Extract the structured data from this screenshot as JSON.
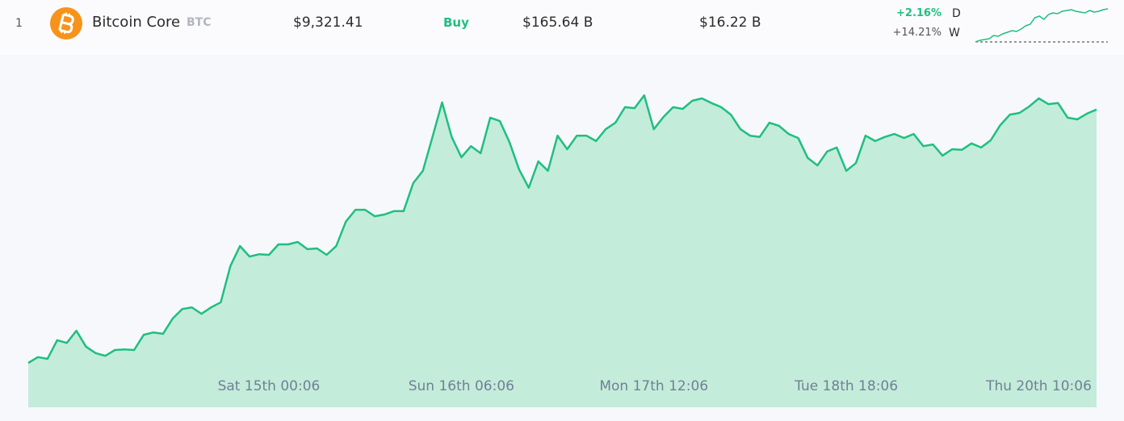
{
  "row": {
    "rank": "1",
    "name": "Bitcoin Core",
    "symbol": "BTC",
    "price": "$9,321.41",
    "action": "Buy",
    "market_cap": "$165.64 B",
    "volume": "$16.22 B",
    "change_day": "+2.16%",
    "day_label": "D",
    "change_week": "+14.21%",
    "week_label": "W"
  },
  "chart_data": [
    {
      "type": "line",
      "color": "#1fbf80",
      "ylim": [
        0,
        42
      ],
      "values": [
        0,
        2,
        3,
        4,
        8,
        7,
        10,
        12,
        14,
        13,
        16,
        20,
        22,
        30,
        32,
        28,
        34,
        36,
        35,
        38,
        39,
        40,
        38,
        37,
        36,
        39,
        37,
        38,
        40,
        41
      ]
    },
    {
      "type": "area",
      "color": "#1fbf80",
      "fill": "#c4ecda",
      "ylim": [
        0,
        100
      ],
      "categories": [
        null,
        null,
        null,
        null,
        null,
        null,
        null,
        null,
        null,
        null,
        null,
        null,
        null,
        null,
        null,
        null,
        null,
        null,
        null,
        null,
        null,
        null,
        null,
        null,
        null,
        "Sat 15th 00:06",
        null,
        null,
        null,
        null,
        null,
        null,
        null,
        null,
        null,
        null,
        null,
        null,
        null,
        null,
        null,
        null,
        null,
        null,
        null,
        "Sun 16th 06:06",
        null,
        null,
        null,
        null,
        null,
        null,
        null,
        null,
        null,
        null,
        null,
        null,
        null,
        null,
        null,
        null,
        null,
        null,
        null,
        "Mon 17th 12:06",
        null,
        null,
        null,
        null,
        null,
        null,
        null,
        null,
        null,
        null,
        null,
        null,
        null,
        null,
        null,
        null,
        null,
        null,
        null,
        "Tue 18th 18:06",
        null,
        null,
        null,
        null,
        null,
        null,
        null,
        null,
        null,
        null,
        null,
        null,
        null,
        null,
        null,
        null,
        null,
        null,
        null,
        "Thu 20th 10:06",
        null,
        null,
        null,
        null,
        null,
        null
      ],
      "values": [
        13.1,
        14.8,
        14.3,
        19.8,
        19.0,
        22.6,
        17.9,
        16.0,
        15.2,
        16.9,
        17.1,
        16.9,
        21.4,
        22.1,
        21.7,
        26.2,
        29.0,
        29.5,
        27.6,
        29.5,
        31.0,
        41.7,
        47.6,
        44.5,
        45.2,
        45.0,
        48.1,
        48.1,
        48.8,
        46.7,
        46.9,
        45.0,
        47.6,
        54.8,
        58.3,
        58.3,
        56.4,
        56.9,
        57.9,
        57.9,
        66.2,
        69.8,
        79.8,
        90.0,
        79.8,
        73.8,
        77.1,
        75.0,
        85.5,
        84.5,
        78.3,
        70.2,
        64.8,
        72.6,
        69.8,
        80.2,
        76.2,
        80.2,
        80.2,
        78.6,
        82.1,
        84.0,
        88.6,
        88.3,
        92.1,
        82.1,
        85.7,
        88.6,
        88.1,
        90.5,
        91.2,
        89.8,
        88.6,
        86.4,
        82.1,
        80.2,
        79.8,
        84.0,
        83.1,
        80.7,
        79.5,
        73.6,
        71.4,
        75.5,
        76.7,
        69.8,
        72.1,
        80.2,
        78.6,
        79.8,
        80.7,
        79.5,
        80.7,
        77.1,
        77.6,
        74.3,
        76.2,
        76.0,
        77.9,
        76.7,
        78.8,
        83.3,
        86.4,
        86.9,
        88.8,
        91.2,
        89.5,
        89.8,
        85.5,
        85.0,
        86.7,
        87.9
      ]
    }
  ]
}
